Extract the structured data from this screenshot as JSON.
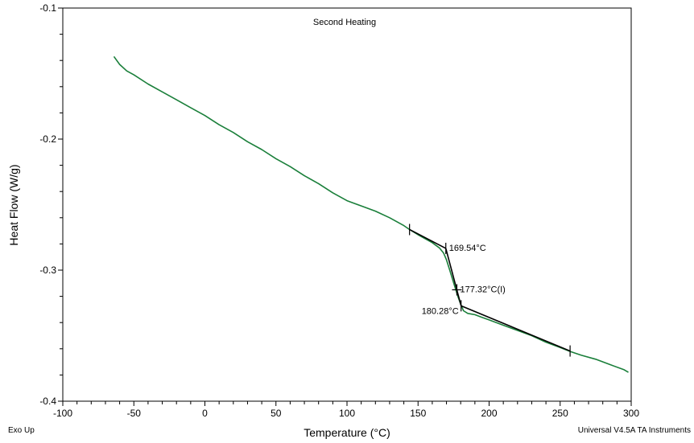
{
  "chart_data": {
    "type": "line",
    "title": "Second Heating",
    "xlabel": "Temperature (°C)",
    "ylabel": "Heat Flow (W/g)",
    "xlim": [
      -100,
      300
    ],
    "ylim": [
      -0.4,
      -0.1
    ],
    "x_ticks": [
      "-100",
      "-50",
      "0",
      "50",
      "100",
      "150",
      "200",
      "250",
      "300"
    ],
    "y_ticks": [
      "-0.1",
      "-0.2",
      "-0.3",
      "-0.4"
    ],
    "footer_left": "Exo Up",
    "footer_right": "Universal V4.5A TA Instruments",
    "colors": {
      "curve": "#1a7f3a",
      "axis_label": "#1a7f3a",
      "analysis": "#000000"
    },
    "series": [
      {
        "x": [
          -64,
          -60,
          -55,
          -50,
          -40,
          -30,
          -20,
          -10,
          0,
          10,
          20,
          30,
          40,
          50,
          60,
          70,
          80,
          90,
          100,
          105,
          110,
          120,
          130,
          140,
          144,
          150,
          160,
          165,
          168,
          170,
          172,
          174,
          176,
          178,
          180,
          182,
          185,
          190,
          195,
          200,
          210,
          220,
          230,
          240,
          250,
          257,
          265,
          275,
          285,
          295,
          298
        ],
        "y": [
          -0.137,
          -0.143,
          -0.148,
          -0.151,
          -0.158,
          -0.164,
          -0.17,
          -0.176,
          -0.182,
          -0.189,
          -0.195,
          -0.202,
          -0.208,
          -0.215,
          -0.221,
          -0.228,
          -0.234,
          -0.241,
          -0.247,
          -0.249,
          -0.251,
          -0.255,
          -0.26,
          -0.266,
          -0.269,
          -0.273,
          -0.279,
          -0.283,
          -0.287,
          -0.292,
          -0.299,
          -0.306,
          -0.313,
          -0.32,
          -0.326,
          -0.331,
          -0.333,
          -0.334,
          -0.336,
          -0.338,
          -0.342,
          -0.346,
          -0.35,
          -0.355,
          -0.359,
          -0.362,
          -0.365,
          -0.368,
          -0.372,
          -0.376,
          -0.378
        ]
      }
    ],
    "analysis": {
      "tangents": [
        {
          "x": [
            144,
            169.54
          ],
          "y": [
            -0.269,
            -0.2834
          ]
        },
        {
          "x": [
            169.54,
            180.28
          ],
          "y": [
            -0.2834,
            -0.3272
          ]
        },
        {
          "x": [
            180.28,
            257
          ],
          "y": [
            -0.3272,
            -0.3617
          ]
        }
      ],
      "markers": [
        {
          "x": 144,
          "y": -0.269
        },
        {
          "x": 169.54,
          "y": -0.2834
        },
        {
          "x": 177.32,
          "y": -0.315
        },
        {
          "x": 180.28,
          "y": -0.3272
        },
        {
          "x": 257,
          "y": -0.3617
        }
      ],
      "annotations": [
        {
          "text": "169.54°C",
          "x": 169.54,
          "y": -0.2834,
          "anchor": "right"
        },
        {
          "text": "177.32°C(I)",
          "x": 177.32,
          "y": -0.315,
          "anchor": "right"
        },
        {
          "text": "180.28°C",
          "x": 180.28,
          "y": -0.3272,
          "anchor": "left"
        }
      ]
    }
  }
}
